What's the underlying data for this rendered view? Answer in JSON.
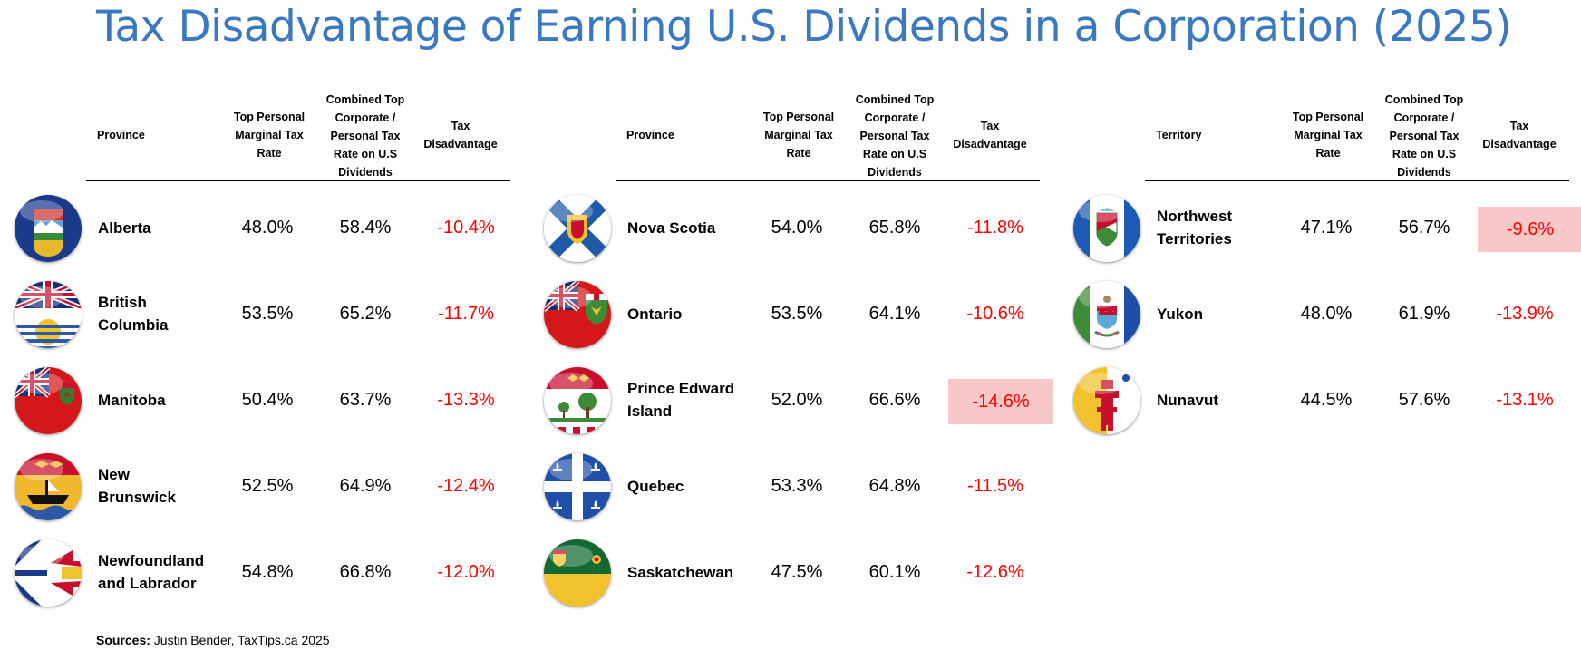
{
  "title": "Tax Disadvantage of Earning U.S. Dividends in a Corporation (2025)",
  "headers_province": [
    "Province",
    "Top Personal Marginal Tax Rate",
    "Combined Top Corporate / Personal Tax Rate on U.S Dividends",
    "Tax Disadvantage"
  ],
  "headers_territory": [
    "Territory",
    "Top Personal Marginal Tax Rate",
    "Combined Top Corporate / Personal Tax Rate on U.S Dividends",
    "Tax Disadvantage"
  ],
  "colors": {
    "title": "#3a78c1",
    "negative": "#ff0000",
    "highlight": "#f8c8c8"
  },
  "chart_data": {
    "type": "table",
    "columns": [
      "Top Personal Marginal Tax Rate",
      "Combined Top Corporate / Personal Tax Rate on U.S Dividends",
      "Tax Disadvantage"
    ],
    "panels": [
      {
        "rows": [
          {
            "name": [
              "Alberta"
            ],
            "flag": "alberta-flag-icon",
            "personal": "48.0%",
            "combined": "58.4%",
            "disadvantage": "-10.4%",
            "highlight": false
          },
          {
            "name": [
              "British",
              "Columbia"
            ],
            "flag": "british-columbia-flag-icon",
            "personal": "53.5%",
            "combined": "65.2%",
            "disadvantage": "-11.7%",
            "highlight": false
          },
          {
            "name": [
              "Manitoba"
            ],
            "flag": "manitoba-flag-icon",
            "personal": "50.4%",
            "combined": "63.7%",
            "disadvantage": "-13.3%",
            "highlight": false
          },
          {
            "name": [
              "New",
              "Brunswick"
            ],
            "flag": "new-brunswick-flag-icon",
            "personal": "52.5%",
            "combined": "64.9%",
            "disadvantage": "-12.4%",
            "highlight": false
          },
          {
            "name": [
              "Newfoundland",
              "and Labrador"
            ],
            "flag": "newfoundland-flag-icon",
            "personal": "54.8%",
            "combined": "66.8%",
            "disadvantage": "-12.0%",
            "highlight": false
          }
        ]
      },
      {
        "rows": [
          {
            "name": [
              "Nova Scotia"
            ],
            "flag": "nova-scotia-flag-icon",
            "personal": "54.0%",
            "combined": "65.8%",
            "disadvantage": "-11.8%",
            "highlight": false
          },
          {
            "name": [
              "Ontario"
            ],
            "flag": "ontario-flag-icon",
            "personal": "53.5%",
            "combined": "64.1%",
            "disadvantage": "-10.6%",
            "highlight": false
          },
          {
            "name": [
              "Prince Edward",
              "Island"
            ],
            "flag": "pei-flag-icon",
            "personal": "52.0%",
            "combined": "66.6%",
            "disadvantage": "-14.6%",
            "highlight": true
          },
          {
            "name": [
              "Quebec"
            ],
            "flag": "quebec-flag-icon",
            "personal": "53.3%",
            "combined": "64.8%",
            "disadvantage": "-11.5%",
            "highlight": false
          },
          {
            "name": [
              "Saskatchewan"
            ],
            "flag": "saskatchewan-flag-icon",
            "personal": "47.5%",
            "combined": "60.1%",
            "disadvantage": "-12.6%",
            "highlight": false
          }
        ]
      },
      {
        "rows": [
          {
            "name": [
              "Northwest",
              "Territories"
            ],
            "flag": "northwest-territories-flag-icon",
            "personal": "47.1%",
            "combined": "56.7%",
            "disadvantage": "-9.6%",
            "highlight": true
          },
          {
            "name": [
              "Yukon"
            ],
            "flag": "yukon-flag-icon",
            "personal": "48.0%",
            "combined": "61.9%",
            "disadvantage": "-13.9%",
            "highlight": false
          },
          {
            "name": [
              "Nunavut"
            ],
            "flag": "nunavut-flag-icon",
            "personal": "44.5%",
            "combined": "57.6%",
            "disadvantage": "-13.1%",
            "highlight": false
          }
        ]
      }
    ]
  },
  "sources": {
    "label": "Sources:",
    "text": " Justin Bender, TaxTips.ca 2025"
  }
}
